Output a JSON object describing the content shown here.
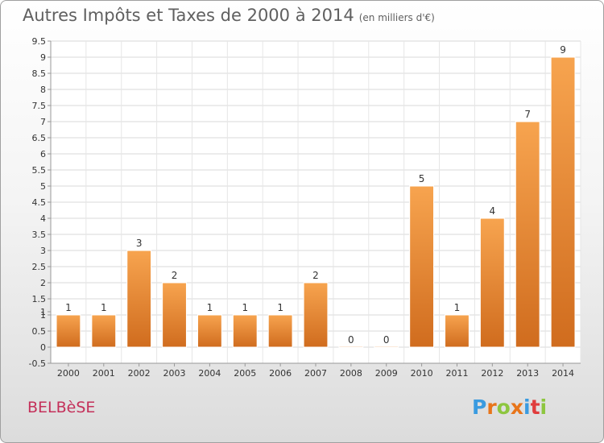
{
  "title": "Autres Impôts et Taxes de 2000 à 2014",
  "unit": "(en milliers d'€)",
  "commune": "BELBèSE",
  "logo_text": "Proxiti",
  "colors": {
    "bar_light": "#f7a44f",
    "bar_dark": "#d06c1e",
    "commune": "#c4305a",
    "logo": [
      "#3a9be0",
      "#e8751a",
      "#8dc63f",
      "#e8751a",
      "#3a9be0",
      "#e03c3c",
      "#8dc63f"
    ]
  },
  "chart_data": {
    "type": "bar",
    "categories": [
      "2000",
      "2001",
      "2002",
      "2003",
      "2004",
      "2005",
      "2006",
      "2007",
      "2008",
      "2009",
      "2010",
      "2011",
      "2012",
      "2013",
      "2014"
    ],
    "values": [
      1,
      1,
      3,
      2,
      1,
      1,
      1,
      2,
      0,
      0,
      5,
      1,
      4,
      7,
      9
    ],
    "data_labels": [
      "1",
      "1",
      "3",
      "2",
      "1",
      "1",
      "1",
      "2",
      "0",
      "0",
      "5",
      "1",
      "4",
      "7",
      "9"
    ],
    "y_ticks": [
      "-0.5",
      "0",
      "0.5",
      "1",
      "1",
      "1.5",
      "2",
      "2.5",
      "3",
      "3.5",
      "4",
      "4.5",
      "5",
      "5.5",
      "6",
      "6.5",
      "7",
      "7.5",
      "8",
      "8.5",
      "9",
      "9.5"
    ],
    "y_tick_values": [
      -0.5,
      0,
      0.5,
      1,
      1.1,
      1.5,
      2,
      2.5,
      3,
      3.5,
      4,
      4.5,
      5,
      5.5,
      6,
      6.5,
      7,
      7.5,
      8,
      8.5,
      9,
      9.5
    ],
    "ylim": [
      -0.5,
      9.5
    ],
    "grid": true,
    "legend": "none"
  }
}
